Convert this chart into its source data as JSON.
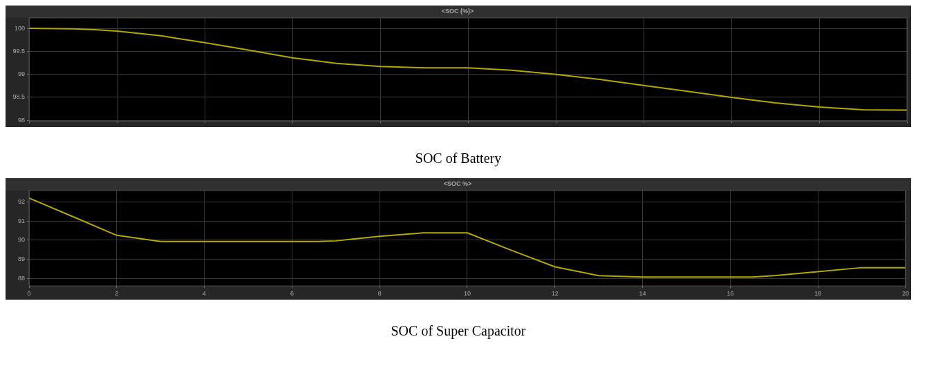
{
  "chart_data": [
    {
      "type": "line",
      "title": "<SOC (%)>",
      "annotations": [
        "SOC of Battery"
      ],
      "x": [
        0,
        1,
        1.5,
        2,
        3,
        4,
        5,
        6,
        7,
        8,
        9,
        10,
        11,
        12,
        13,
        14,
        15,
        16,
        17,
        18,
        19,
        20
      ],
      "series": [
        {
          "color": "#b5a800",
          "values": [
            100,
            99.99,
            99.97,
            99.94,
            99.84,
            99.69,
            99.53,
            99.36,
            99.24,
            99.17,
            99.14,
            99.14,
            99.09,
            99.0,
            98.89,
            98.76,
            98.63,
            98.5,
            98.38,
            98.29,
            98.23,
            98.22
          ]
        }
      ],
      "xlim": [
        0,
        20
      ],
      "xticks": [
        0,
        2,
        4,
        6,
        8,
        10,
        12,
        14,
        16,
        18,
        20
      ],
      "ylim": [
        97.98,
        100.23
      ],
      "yticks": [
        98,
        98.5,
        99,
        99.5,
        100
      ],
      "grid": true,
      "tick_labels": "y",
      "marker": "none",
      "line_style": "solid"
    },
    {
      "type": "line",
      "title": "<SOC %>",
      "annotations": [
        "SOC of Super Capacitor"
      ],
      "x": [
        0,
        1,
        2,
        3,
        4,
        5,
        6,
        6.6,
        7,
        8,
        9,
        10,
        11,
        12,
        13,
        14,
        15,
        16,
        16.5,
        17,
        18,
        19,
        20
      ],
      "series": [
        {
          "color": "#b5a800",
          "values": [
            92.2,
            91.23,
            90.25,
            89.93,
            89.93,
            89.93,
            89.93,
            89.93,
            89.96,
            90.2,
            90.38,
            90.38,
            89.47,
            88.6,
            88.14,
            88.07,
            88.07,
            88.07,
            88.07,
            88.14,
            88.35,
            88.56,
            88.56
          ]
        }
      ],
      "xlim": [
        0,
        20
      ],
      "xticks": [
        0,
        2,
        4,
        6,
        8,
        10,
        12,
        14,
        16,
        18,
        20
      ],
      "ylim": [
        87.6,
        92.6
      ],
      "yticks": [
        88,
        89,
        90,
        91,
        92
      ],
      "grid": true,
      "marker": "none",
      "line_style": "solid"
    }
  ]
}
